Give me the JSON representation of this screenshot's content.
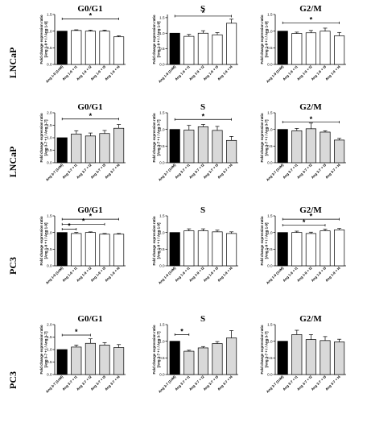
{
  "colors": {
    "control": "#000000",
    "ang19": "#ffffff",
    "ang37": "#d9d9d9",
    "stroke": "#000000"
  },
  "row_labels": [
    "LNCaP",
    "LNCaP",
    "PC3",
    "PC3"
  ],
  "chart_data": [
    {
      "type": "bar",
      "row": 0,
      "col": 0,
      "title": "G0/G1",
      "ylabel": [
        "Fold change expression ratio",
        "[Ang 1-9 + I / Ang 1-9]"
      ],
      "ylim": [
        0,
        1.5
      ],
      "yticks": [
        "0.0",
        "0.5",
        "1.0",
        "1.5"
      ],
      "categories": [
        "Ang 1-9 (1nM)",
        "Ang 1-9 + I1",
        "Ang 1-9 + I2",
        "Ang 1-9 + I3",
        "Ang 1-9 + I4"
      ],
      "values": [
        1.0,
        1.02,
        1.0,
        1.0,
        0.83
      ],
      "errors": [
        0,
        0.02,
        0.03,
        0.03,
        0.03
      ],
      "fill": "ang19",
      "annotations": [
        {
          "from": 0,
          "to": 4,
          "label": "*",
          "y": 1.37
        }
      ]
    },
    {
      "type": "bar",
      "row": 0,
      "col": 1,
      "title": "S",
      "ylabel": [
        "Fold change expression ratio",
        "[Ang 1-9 + I / Ang 1-9]"
      ],
      "ylim": [
        0,
        1.6
      ],
      "yticks": [
        "0.0",
        "0.5",
        "1.0",
        "1.5"
      ],
      "categories": [
        "Ang 1-9 (1nM)",
        "Ang 1-9 + I1",
        "Ang 1-9 + I2",
        "Ang 1-9 + I3",
        "Ang 1-9 + I4"
      ],
      "values": [
        1.0,
        0.9,
        1.0,
        0.95,
        1.32
      ],
      "errors": [
        0,
        0.06,
        0.08,
        0.07,
        0.13
      ],
      "fill": "ang19",
      "annotations": [
        {
          "from": 0,
          "to": 4,
          "label": "*",
          "y": 1.55
        }
      ]
    },
    {
      "type": "bar",
      "row": 0,
      "col": 2,
      "title": "G2/M",
      "ylabel": [
        "Fold change expression ratio",
        "[Ang 1-9 + I / Ang 1-9]"
      ],
      "ylim": [
        0,
        1.5
      ],
      "yticks": [
        "0.0",
        "0.5",
        "1.0",
        "1.5"
      ],
      "categories": [
        "Ang 1-9 (1nM)",
        "Ang 1-9 + I1",
        "Ang 1-9 + I2",
        "Ang 1-9 + I3",
        "Ang 1-9 + I4"
      ],
      "values": [
        1.0,
        0.93,
        0.95,
        1.0,
        0.86
      ],
      "errors": [
        0,
        0.04,
        0.07,
        0.09,
        0.1
      ],
      "fill": "ang19",
      "annotations": [
        {
          "from": 0,
          "to": 4,
          "label": "*",
          "y": 1.25
        }
      ]
    },
    {
      "type": "bar",
      "row": 1,
      "col": 0,
      "title": "G0/G1",
      "ylabel": [
        "Fold change expression ratio",
        "[Ang 3-7 + I / Ang 3-7]"
      ],
      "ylim": [
        0,
        2.0
      ],
      "yticks": [
        "0.0",
        "0.5",
        "1.0",
        "1.5",
        "2.0"
      ],
      "categories": [
        "Ang 3-7 (1nM)",
        "Ang 3-7 + I1",
        "Ang 3-7 + I2",
        "Ang 3-7 + I3",
        "Ang 3-7 + I4"
      ],
      "values": [
        1.0,
        1.15,
        1.07,
        1.17,
        1.38
      ],
      "errors": [
        0,
        0.13,
        0.12,
        0.12,
        0.15
      ],
      "fill": "ang37",
      "annotations": [
        {
          "from": 0,
          "to": 4,
          "label": "*",
          "y": 1.75
        }
      ]
    },
    {
      "type": "bar",
      "row": 1,
      "col": 1,
      "title": "S",
      "ylabel": [
        "Fold change expression ratio",
        "[Ang 3-7 + I / Ang 3-7]"
      ],
      "ylim": [
        0,
        1.5
      ],
      "yticks": [
        "0.0",
        "0.5",
        "1.0",
        "1.5"
      ],
      "categories": [
        "Ang 3-7 (1nM)",
        "Ang 3-7 + I1",
        "Ang 3-7 + I2",
        "Ang 3-7 + I3",
        "Ang 3-7 + I4"
      ],
      "values": [
        1.0,
        0.98,
        1.08,
        0.97,
        0.67
      ],
      "errors": [
        0,
        0.14,
        0.07,
        0.12,
        0.12
      ],
      "fill": "ang37",
      "annotations": [
        {
          "from": 0,
          "to": 4,
          "label": "*",
          "y": 1.3
        }
      ]
    },
    {
      "type": "bar",
      "row": 1,
      "col": 2,
      "title": "G2/M",
      "ylabel": [
        "Fold change expression ratio",
        "[Ang 3-7 + I / Ang 3-7]"
      ],
      "ylim": [
        0,
        1.5
      ],
      "yticks": [
        "0.0",
        "0.5",
        "1.0",
        "1.5"
      ],
      "categories": [
        "Ang 3-7 (1nM)",
        "Ang 3-7 + I1",
        "Ang 3-7 + I2",
        "Ang 3-7 + I3",
        "Ang 3-7 + I4"
      ],
      "values": [
        1.0,
        0.96,
        1.02,
        0.92,
        0.68
      ],
      "errors": [
        0,
        0.07,
        0.17,
        0.04,
        0.05
      ],
      "fill": "ang37",
      "annotations": [
        {
          "from": 0,
          "to": 4,
          "label": "*",
          "y": 1.22
        }
      ]
    },
    {
      "type": "bar",
      "row": 2,
      "col": 0,
      "title": "G0/G1",
      "ylabel": [
        "Fold change expression ratio",
        "[Ang 1-9 + I / Ang 1-9]"
      ],
      "ylim": [
        0,
        1.5
      ],
      "yticks": [
        "0.0",
        "0.5",
        "1.0",
        "1.5"
      ],
      "categories": [
        "Ang 1-9 (1nM)",
        "Ang 1-9 + I1",
        "Ang 1-9 + I2",
        "Ang 1-9 + I3",
        "Ang 1-9 + I4"
      ],
      "values": [
        1.0,
        0.97,
        1.0,
        0.95,
        0.95
      ],
      "errors": [
        0,
        0.03,
        0.02,
        0.02,
        0.02
      ],
      "fill": "ang19",
      "annotations": [
        {
          "from": 0,
          "to": 4,
          "label": "*",
          "y": 1.4
        },
        {
          "from": 0,
          "to": 3,
          "label": "*",
          "y": 1.25
        },
        {
          "from": 0,
          "to": 1,
          "label": "*",
          "y": 1.1
        }
      ]
    },
    {
      "type": "bar",
      "row": 2,
      "col": 1,
      "title": "S",
      "ylabel": [
        "Fold change expression ratio",
        "[Ang 1-9 + I / Ang 1-9]"
      ],
      "ylim": [
        0,
        1.5
      ],
      "yticks": [
        "0.0",
        "0.5",
        "1.0",
        "1.5"
      ],
      "categories": [
        "Ang 1-9 (1nM)",
        "Ang 1-9 + I1",
        "Ang 1-9 + I2",
        "Ang 1-9 + I3",
        "Ang 1-9 + I4"
      ],
      "values": [
        1.0,
        1.05,
        1.05,
        1.02,
        0.97
      ],
      "errors": [
        0,
        0.06,
        0.06,
        0.05,
        0.05
      ],
      "fill": "ang19",
      "annotations": []
    },
    {
      "type": "bar",
      "row": 2,
      "col": 2,
      "title": "G2/M",
      "ylabel": [
        "Fold change expression ratio",
        "[Ang 1-9 + I / Ang 1-9]"
      ],
      "ylim": [
        0,
        1.5
      ],
      "yticks": [
        "0.0",
        "0.5",
        "1.0",
        "1.5"
      ],
      "categories": [
        "Ang 1-9 (1nM)",
        "Ang 1-9 + I1",
        "Ang 1-9 + I2",
        "Ang 1-9 + I3",
        "Ang 1-9 + I4"
      ],
      "values": [
        1.0,
        1.0,
        0.97,
        1.05,
        1.08
      ],
      "errors": [
        0,
        0.04,
        0.04,
        0.05,
        0.04
      ],
      "fill": "ang19",
      "annotations": [
        {
          "from": 0,
          "to": 4,
          "label": "*",
          "y": 1.4
        },
        {
          "from": 0,
          "to": 3,
          "label": "*",
          "y": 1.22
        }
      ]
    },
    {
      "type": "bar",
      "row": 3,
      "col": 0,
      "title": "G0/G1",
      "ylabel": [
        "Fold change expression ratio",
        "[Ang 3-7 + I / Ang 3-7]"
      ],
      "ylim": [
        0,
        2.0
      ],
      "yticks": [
        "0.0",
        "0.5",
        "1.0",
        "1.5",
        "2.0"
      ],
      "categories": [
        "Ang 3-7 (1nM)",
        "Ang 3-7 + I1",
        "Ang 3-7 + I2",
        "Ang 3-7 + I3",
        "Ang 3-7 + I4"
      ],
      "values": [
        1.0,
        1.1,
        1.25,
        1.18,
        1.08
      ],
      "errors": [
        0,
        0.08,
        0.18,
        0.1,
        0.12
      ],
      "fill": "ang37",
      "annotations": [
        {
          "from": 0,
          "to": 2,
          "label": "*",
          "y": 1.58
        }
      ]
    },
    {
      "type": "bar",
      "row": 3,
      "col": 1,
      "title": "S",
      "ylabel": [
        "Fold change expression ratio",
        "[Ang 3-7 + I / Ang 3-7]"
      ],
      "ylim": [
        0,
        1.5
      ],
      "yticks": [
        "0.0",
        "0.5",
        "1.0",
        "1.5"
      ],
      "categories": [
        "Ang 3-7 (1nM)",
        "Ang 3-7 + I1",
        "Ang 3-7 + I2",
        "Ang 3-7 + I3",
        "Ang 3-7 + I4"
      ],
      "values": [
        1.0,
        0.7,
        0.8,
        0.93,
        1.1
      ],
      "errors": [
        0,
        0.03,
        0.04,
        0.06,
        0.22
      ],
      "fill": "ang37",
      "annotations": [
        {
          "from": 0,
          "to": 1,
          "label": "*",
          "y": 1.2
        }
      ]
    },
    {
      "type": "bar",
      "row": 3,
      "col": 2,
      "title": "G2/M",
      "ylabel": [
        "Fold change expression ratio",
        "[Ang 3-7 + I / Ang 3-7]"
      ],
      "ylim": [
        0,
        1.5
      ],
      "yticks": [
        "0.0",
        "0.5",
        "1.0",
        "1.5"
      ],
      "categories": [
        "Ang 3-7 (1nM)",
        "Ang 3-7 + I1",
        "Ang 3-7 + I2",
        "Ang 3-7 + I3",
        "Ang 3-7 + I4"
      ],
      "values": [
        1.0,
        1.2,
        1.05,
        1.02,
        0.98
      ],
      "errors": [
        0,
        0.13,
        0.15,
        0.12,
        0.08
      ],
      "fill": "ang37",
      "annotations": []
    }
  ]
}
